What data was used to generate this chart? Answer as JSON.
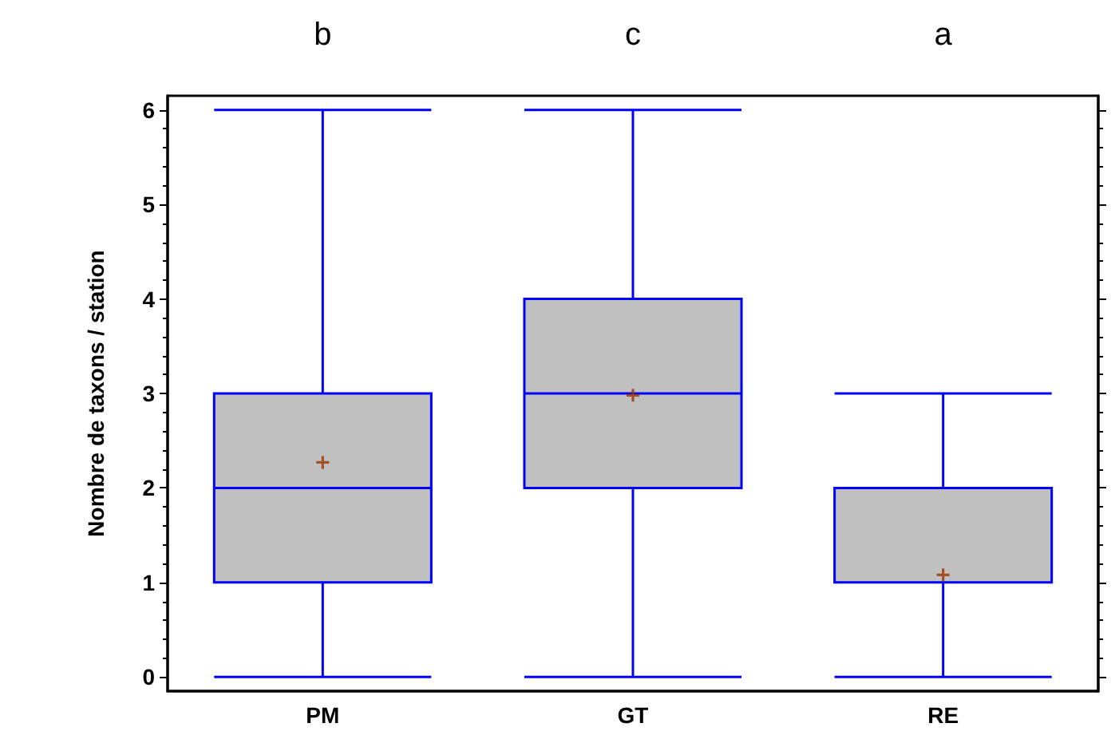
{
  "chart_data": {
    "type": "box",
    "ylabel": "Nombre de taxons / station",
    "categories": [
      "PM",
      "GT",
      "RE"
    ],
    "series": [
      {
        "color": "#0000ff",
        "boxes": [
          {
            "low": 0,
            "q1": 1,
            "median": 2,
            "q3": 3,
            "high": 6,
            "mean": 2.27
          },
          {
            "low": 0,
            "q1": 2,
            "median": 3,
            "q3": 4,
            "high": 6,
            "mean": 2.98
          },
          {
            "low": 0,
            "q1": 1,
            "median": 1,
            "q3": 2,
            "high": 3,
            "mean": 1.08
          }
        ]
      }
    ],
    "ylim": [
      -0.15,
      6.15
    ],
    "yticks": [
      0,
      1,
      2,
      3,
      4,
      5,
      6
    ],
    "grid": false,
    "annotations": [
      "b",
      "c",
      "a"
    ]
  }
}
